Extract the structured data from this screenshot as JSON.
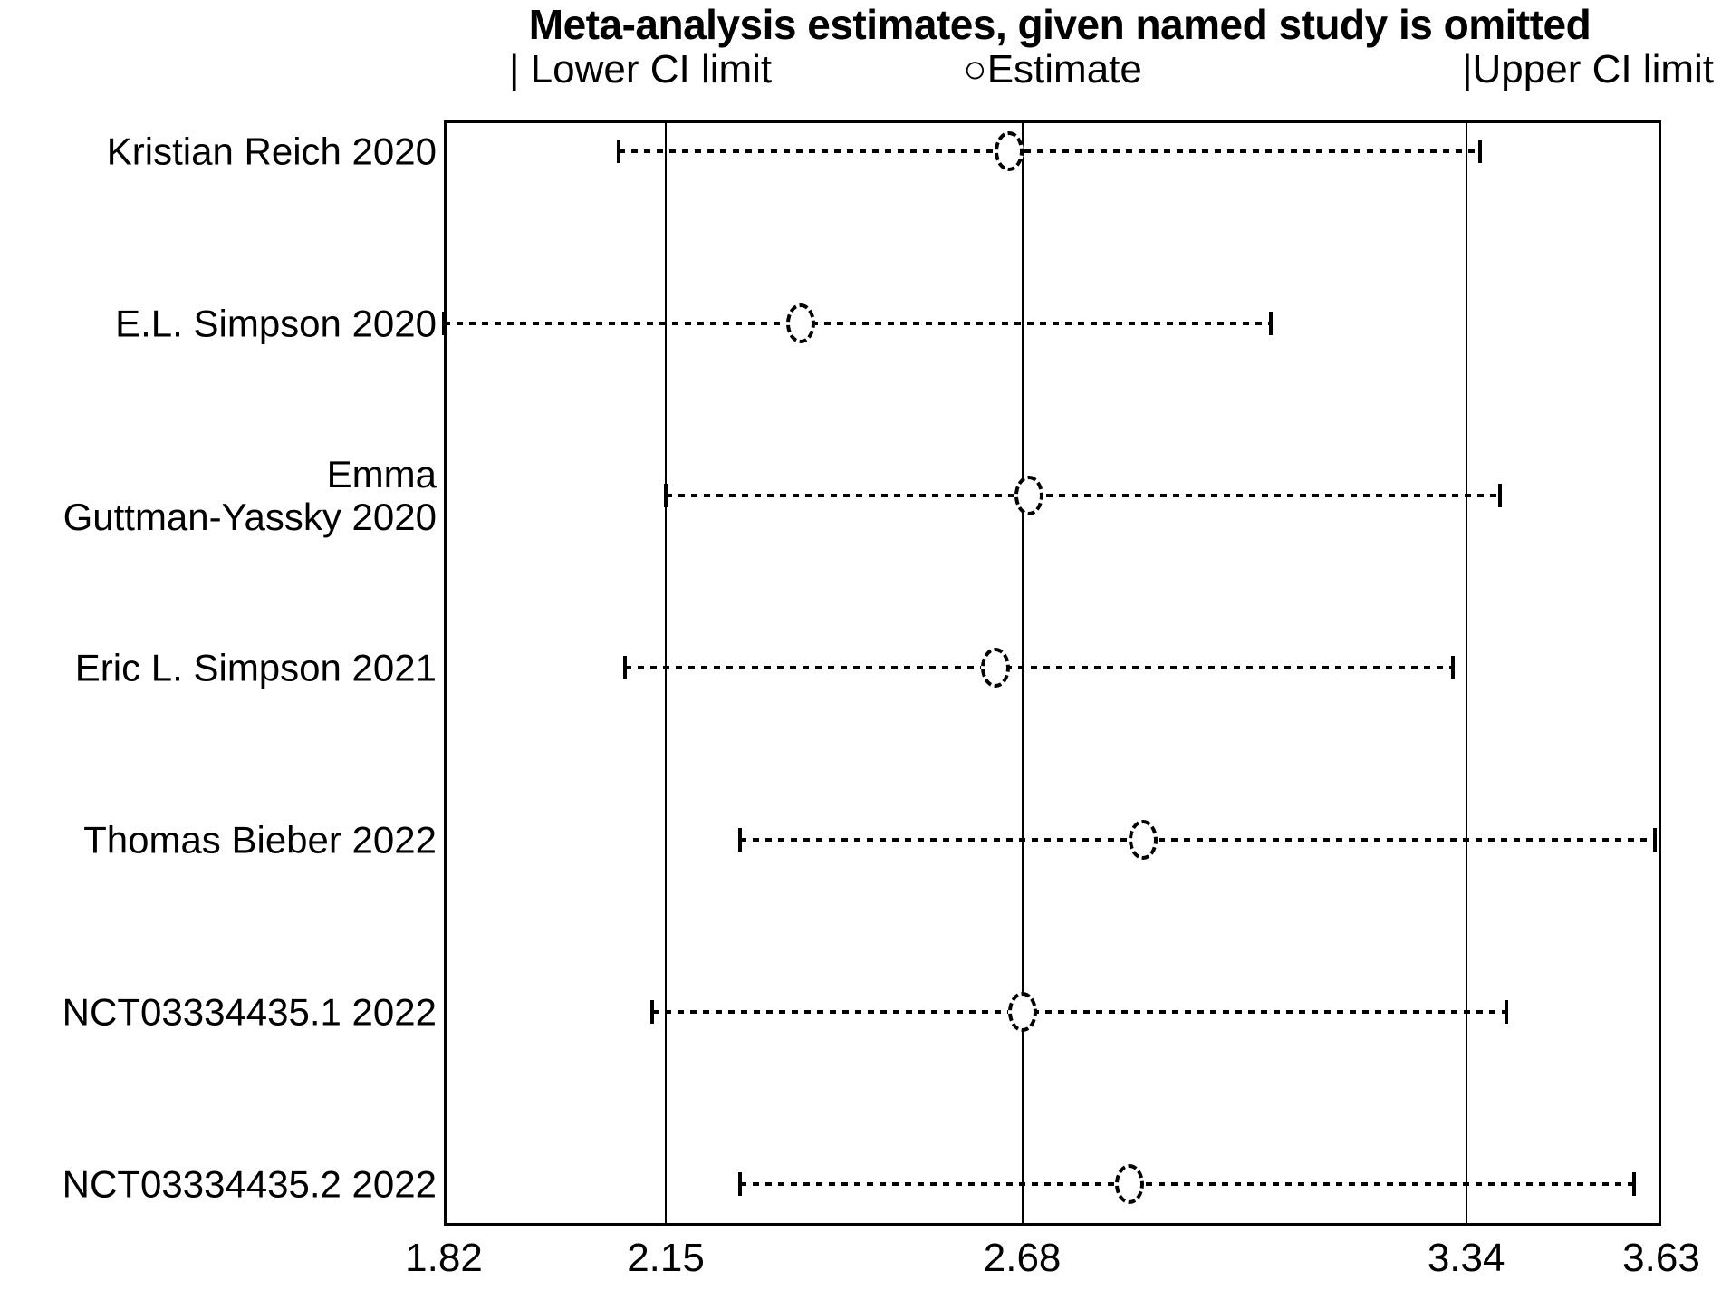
{
  "title": "Meta-analysis estimates, given named study is omitted",
  "legend": {
    "lower": {
      "marker": "|",
      "label": " Lower CI limit"
    },
    "estimate": {
      "marker": "○",
      "label": "Estimate"
    },
    "upper": {
      "marker": "|",
      "label": "Upper CI limit"
    }
  },
  "colors": {
    "foreground": "#000000",
    "background": "#ffffff"
  },
  "chart_data": {
    "type": "scatter",
    "variant": "leave-one-out-forest-plot",
    "title": "Meta-analysis estimates, given named study is omitted",
    "legend_entries": [
      "| Lower CI limit",
      "○Estimate",
      "|Upper CI limit"
    ],
    "legend_position": "top",
    "grid": false,
    "x_axis": {
      "range": [
        1.82,
        3.63
      ],
      "ticks": [
        {
          "label": "1.82",
          "value": 1.82
        },
        {
          "label": "2.15",
          "value": 2.15
        },
        {
          "label": "2.68",
          "value": 2.68
        },
        {
          "label": "3.34",
          "value": 3.34
        },
        {
          "label": "3.63",
          "value": 3.63
        }
      ],
      "reference_lines": [
        2.15,
        2.68,
        3.34
      ]
    },
    "studies": [
      {
        "label": "Kristian Reich 2020",
        "label_lines": [
          "Kristian Reich 2020"
        ],
        "lower": 2.08,
        "estimate": 2.66,
        "upper": 3.36
      },
      {
        "label": "E.L. Simpson 2020",
        "label_lines": [
          "E.L. Simpson 2020"
        ],
        "lower": 1.82,
        "estimate": 2.35,
        "upper": 3.05
      },
      {
        "label": "Emma Guttman-Yassky 2020",
        "label_lines": [
          "Emma",
          "Guttman-Yassky 2020"
        ],
        "lower": 2.15,
        "estimate": 2.69,
        "upper": 3.39
      },
      {
        "label": "Eric L. Simpson 2021",
        "label_lines": [
          "Eric L. Simpson 2021"
        ],
        "lower": 2.09,
        "estimate": 2.64,
        "upper": 3.32
      },
      {
        "label": "Thomas Bieber 2022",
        "label_lines": [
          "Thomas Bieber 2022"
        ],
        "lower": 2.26,
        "estimate": 2.86,
        "upper": 3.62
      },
      {
        "label": "NCT03334435.1 2022",
        "label_lines": [
          "NCT03334435.1 2022"
        ],
        "lower": 2.13,
        "estimate": 2.68,
        "upper": 3.4
      },
      {
        "label": "NCT03334435.2 2022",
        "label_lines": [
          "NCT03334435.2 2022"
        ],
        "lower": 2.26,
        "estimate": 2.84,
        "upper": 3.59
      }
    ]
  }
}
